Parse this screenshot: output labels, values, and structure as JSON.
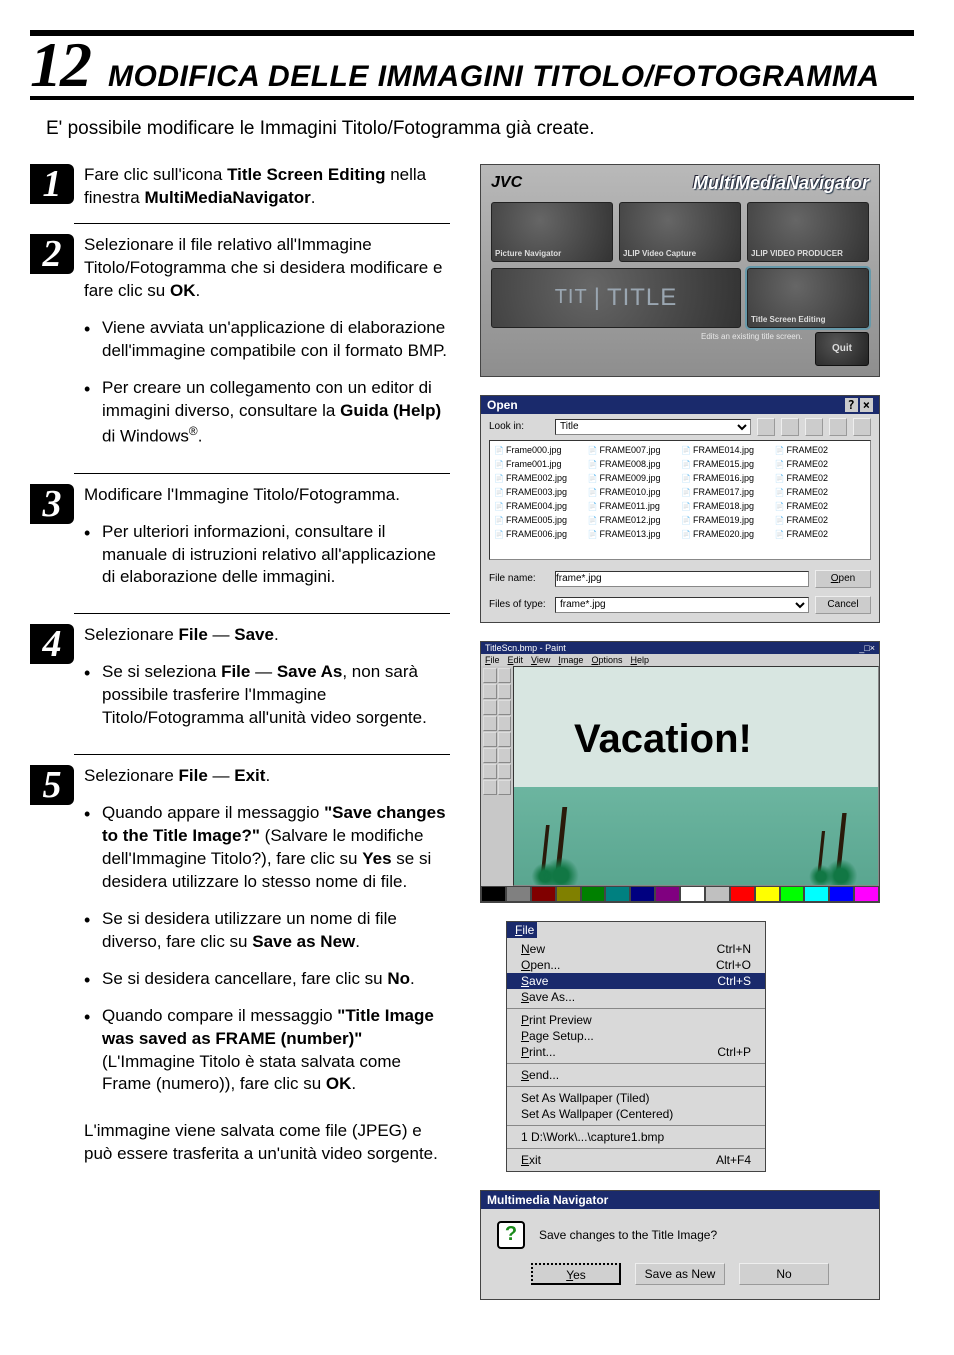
{
  "chapter": {
    "number": "12",
    "title": "MODIFICA DELLE IMMAGINI TITOLO/FOTOGRAMMA"
  },
  "intro": "E' possibile modificare le Immagini Titolo/Fotogramma già create.",
  "steps": [
    {
      "num": "1",
      "body": "Fare clic sull'icona <b>Title Screen Editing</b> nella finestra <b>MultiMediaNavigator</b>.",
      "bullets": []
    },
    {
      "num": "2",
      "body": "Selezionare il file relativo all'Immagine Titolo/Fotogramma che si desidera modificare e fare clic su <b>OK</b>.",
      "bullets": [
        "Viene avviata un'applicazione di elaborazione dell'immagine compatibile con il formato BMP.",
        "Per creare un collegamento con un editor di immagini diverso, consultare la <b>Guida (Help)</b> di Windows<sup>®</sup>."
      ]
    },
    {
      "num": "3",
      "body": "Modificare l'Immagine Titolo/Fotogramma.",
      "bullets": [
        "Per ulteriori informazioni, consultare il manuale di istruzioni relativo all'applicazione di elaborazione delle immagini."
      ]
    },
    {
      "num": "4",
      "body": "Selezionare <b>File</b> — <b>Save</b>.",
      "bullets": [
        "Se si seleziona <b>File</b> — <b>Save As</b>, non sarà possibile trasferire l'Immagine Titolo/Fotogramma all'unità video sorgente."
      ]
    },
    {
      "num": "5",
      "body": "Selezionare <b>File</b> — <b>Exit</b>.",
      "bullets": [
        "Quando appare il messaggio <b>\"Save changes to the Title Image?\"</b> (Salvare le modifiche dell'Immagine Titolo?), fare clic su <b>Yes</b> se si desidera utilizzare lo stesso nome di file.",
        "Se si desidera utilizzare un nome di file diverso, fare clic su <b>Save as New</b>.",
        "Se si desidera cancellare, fare clic su <b>No</b>.",
        "Quando compare il messaggio <b>\"Title Image was saved as FRAME (number)\"</b> (L'Immagine Titolo è stata salvata come Frame (numero)), fare clic su <b>OK</b>."
      ]
    }
  ],
  "afterSteps": "L'immagine viene salvata come file (JPEG) e può essere trasferita a un'unità video sorgente.",
  "mmnav": {
    "brand": "JVC",
    "app": "MultiMediaNavigator",
    "tiles": [
      "Picture Navigator",
      "JLIP Video Capture",
      "JLIP VIDEO PRODUCER"
    ],
    "editingTile": "Title Screen Editing",
    "editingDesc": "Edits an existing title screen.",
    "titleTile": "TITLE",
    "quit": "Quit"
  },
  "openDlg": {
    "title": "Open",
    "lookIn": "Look in:",
    "folder": "Title",
    "files": [
      "Frame000.jpg",
      "FRAME007.jpg",
      "FRAME014.jpg",
      "FRAME02",
      "Frame001.jpg",
      "FRAME008.jpg",
      "FRAME015.jpg",
      "FRAME02",
      "FRAME002.jpg",
      "FRAME009.jpg",
      "FRAME016.jpg",
      "FRAME02",
      "FRAME003.jpg",
      "FRAME010.jpg",
      "FRAME017.jpg",
      "FRAME02",
      "FRAME004.jpg",
      "FRAME011.jpg",
      "FRAME018.jpg",
      "FRAME02",
      "FRAME005.jpg",
      "FRAME012.jpg",
      "FRAME019.jpg",
      "FRAME02",
      "FRAME006.jpg",
      "FRAME013.jpg",
      "FRAME020.jpg",
      "FRAME02"
    ],
    "fileNameLabel": "File name:",
    "fileName": "frame*.jpg",
    "filesOfTypeLabel": "Files of type:",
    "filesOfType": "frame*.jpg",
    "openBtn": "Open",
    "cancelBtn": "Cancel"
  },
  "paint": {
    "title": "TitleScn.bmp - Paint",
    "menu": [
      "File",
      "Edit",
      "View",
      "Image",
      "Options",
      "Help"
    ],
    "caption": "Vacation!",
    "palette": [
      "#000000",
      "#808080",
      "#800000",
      "#808000",
      "#008000",
      "#008080",
      "#000080",
      "#800080",
      "#ffffff",
      "#c0c0c0",
      "#ff0000",
      "#ffff00",
      "#00ff00",
      "#00ffff",
      "#0000ff",
      "#ff00ff"
    ]
  },
  "fileMenu": {
    "header": "File",
    "groups": [
      [
        {
          "l": "New",
          "s": "Ctrl+N"
        },
        {
          "l": "Open...",
          "s": "Ctrl+O"
        },
        {
          "l": "Save",
          "s": "Ctrl+S",
          "hl": true
        },
        {
          "l": "Save As...",
          "s": ""
        }
      ],
      [
        {
          "l": "Print Preview",
          "s": ""
        },
        {
          "l": "Page Setup...",
          "s": ""
        },
        {
          "l": "Print...",
          "s": "Ctrl+P"
        }
      ],
      [
        {
          "l": "Send...",
          "s": ""
        }
      ],
      [
        {
          "l": "Set As Wallpaper (Tiled)",
          "s": ""
        },
        {
          "l": "Set As Wallpaper (Centered)",
          "s": ""
        }
      ],
      [
        {
          "l": "1 D:\\Work\\...\\capture1.bmp",
          "s": ""
        }
      ],
      [
        {
          "l": "Exit",
          "s": "Alt+F4"
        }
      ]
    ]
  },
  "msgBox": {
    "title": "Multimedia Navigator",
    "msg": "Save changes to the Title Image?",
    "yes": "Yes",
    "saveNew": "Save as New",
    "no": "No"
  }
}
